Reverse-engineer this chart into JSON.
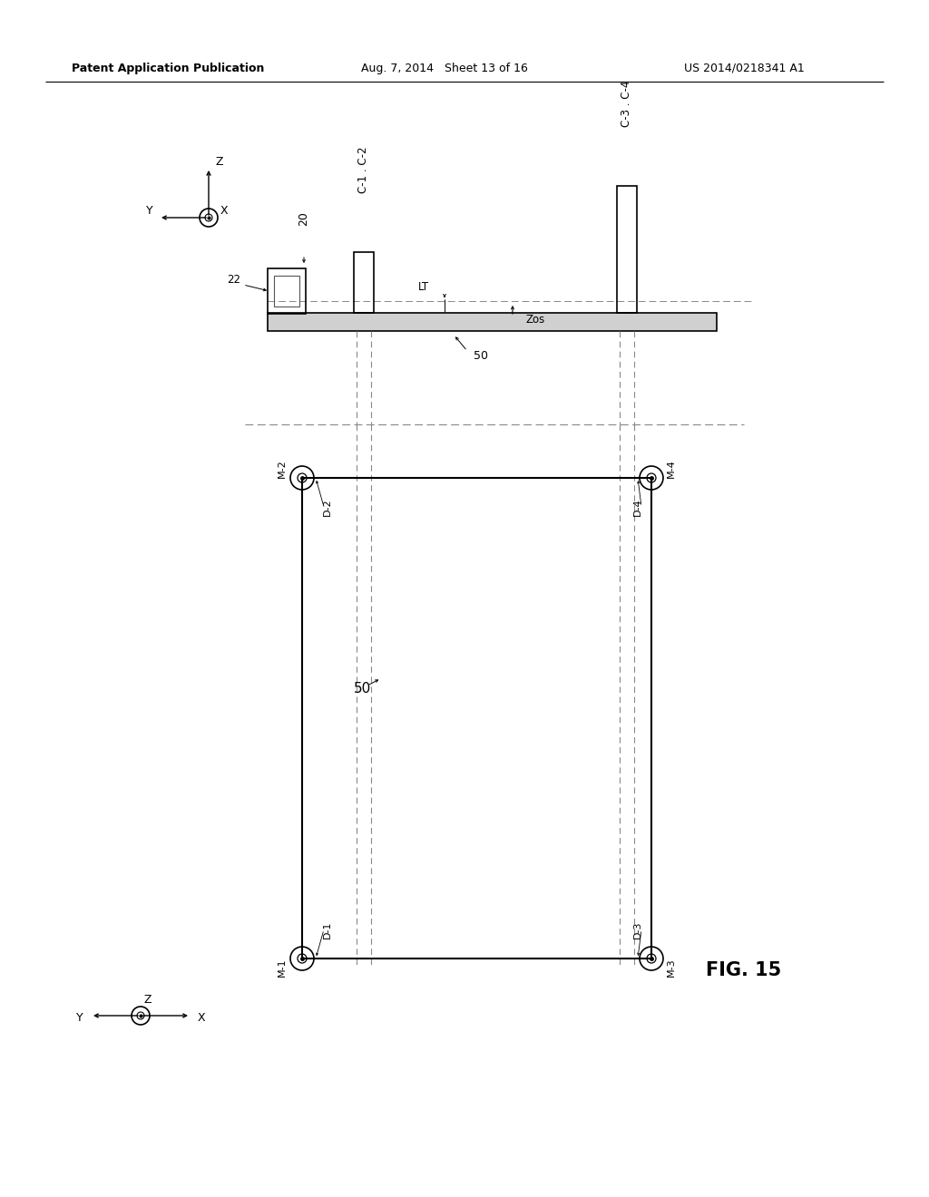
{
  "header_left": "Patent Application Publication",
  "header_mid": "Aug. 7, 2014   Sheet 13 of 16",
  "header_right": "US 2014/0218341 A1",
  "fig_label": "FIG. 15",
  "bg_color": "#ffffff",
  "lc": "#000000",
  "gray": "#888888"
}
